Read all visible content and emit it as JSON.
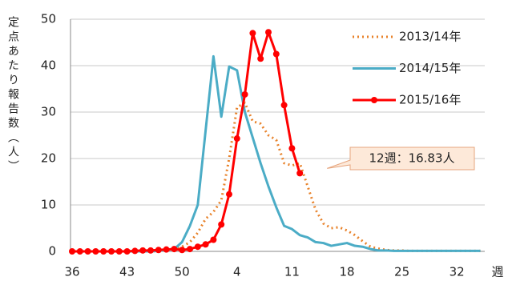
{
  "chart_data": {
    "type": "line",
    "y_label": "定点あたり報告数（人）",
    "x_label": "週",
    "categories": [
      "36",
      null,
      null,
      null,
      null,
      null,
      null,
      "43",
      null,
      null,
      null,
      null,
      null,
      null,
      "50",
      null,
      null,
      null,
      null,
      null,
      null,
      "4",
      null,
      null,
      null,
      null,
      null,
      null,
      "11",
      null,
      null,
      null,
      null,
      null,
      null,
      "18",
      null,
      null,
      null,
      null,
      null,
      null,
      "25",
      null,
      null,
      null,
      null,
      null,
      null,
      "32",
      null,
      null,
      null
    ],
    "series": [
      {
        "name": "2013/14年",
        "color": "#e8822a",
        "dash": "dotted",
        "marker": false,
        "values": [
          0,
          0,
          0,
          0,
          0,
          0,
          0,
          0,
          0,
          0,
          0,
          0.1,
          0.3,
          0.5,
          1,
          2,
          4,
          7,
          8.5,
          11,
          20,
          31,
          32,
          28,
          27.5,
          25,
          24,
          19,
          18.5,
          19,
          14,
          9,
          6,
          5,
          5.2,
          4.5,
          3.5,
          2.2,
          1,
          0.6,
          0.3,
          0.2,
          0.2,
          0.1,
          0.1,
          0.1,
          0.1,
          0.1,
          0.1,
          0.1,
          0.1,
          0.1,
          0.1
        ]
      },
      {
        "name": "2014/15年",
        "color": "#4bacc6",
        "dash": "solid",
        "marker": false,
        "values": [
          0,
          0,
          0,
          0,
          0,
          0,
          0,
          0,
          0,
          0,
          0,
          0.1,
          0.3,
          0.5,
          2,
          5.5,
          10,
          26,
          42,
          29,
          39.8,
          39,
          30,
          24.5,
          19,
          14,
          9.5,
          5.5,
          4.8,
          3.5,
          3,
          2,
          1.8,
          1.2,
          1.5,
          1.8,
          1.2,
          1,
          0.5,
          0.2,
          0.2,
          0.1,
          0.1,
          0.1,
          0.1,
          0.1,
          0.1,
          0.1,
          0.1,
          0.1,
          0.1,
          0.1,
          0.1
        ]
      },
      {
        "name": "2015/16年",
        "color": "#ff0000",
        "dash": "solid",
        "marker": true,
        "values": [
          0,
          0,
          0,
          0,
          0,
          0,
          0,
          0,
          0.1,
          0.2,
          0.2,
          0.3,
          0.4,
          0.5,
          0.3,
          0.5,
          1,
          1.5,
          2.5,
          5.8,
          12.3,
          24.3,
          33.8,
          47,
          41.5,
          47.2,
          42.5,
          31.5,
          22.2,
          16.83,
          null,
          null,
          null,
          null,
          null,
          null,
          null,
          null,
          null,
          null,
          null,
          null,
          null,
          null,
          null,
          null,
          null,
          null,
          null,
          null,
          null,
          null,
          null
        ]
      }
    ],
    "ylim": [
      0,
      50
    ],
    "yticks": [
      0,
      10,
      20,
      30,
      40,
      50
    ],
    "grid": true,
    "legend": "upper right",
    "annotations": [
      {
        "text": "12週：16.83人",
        "series": 2,
        "index": 29
      }
    ]
  }
}
